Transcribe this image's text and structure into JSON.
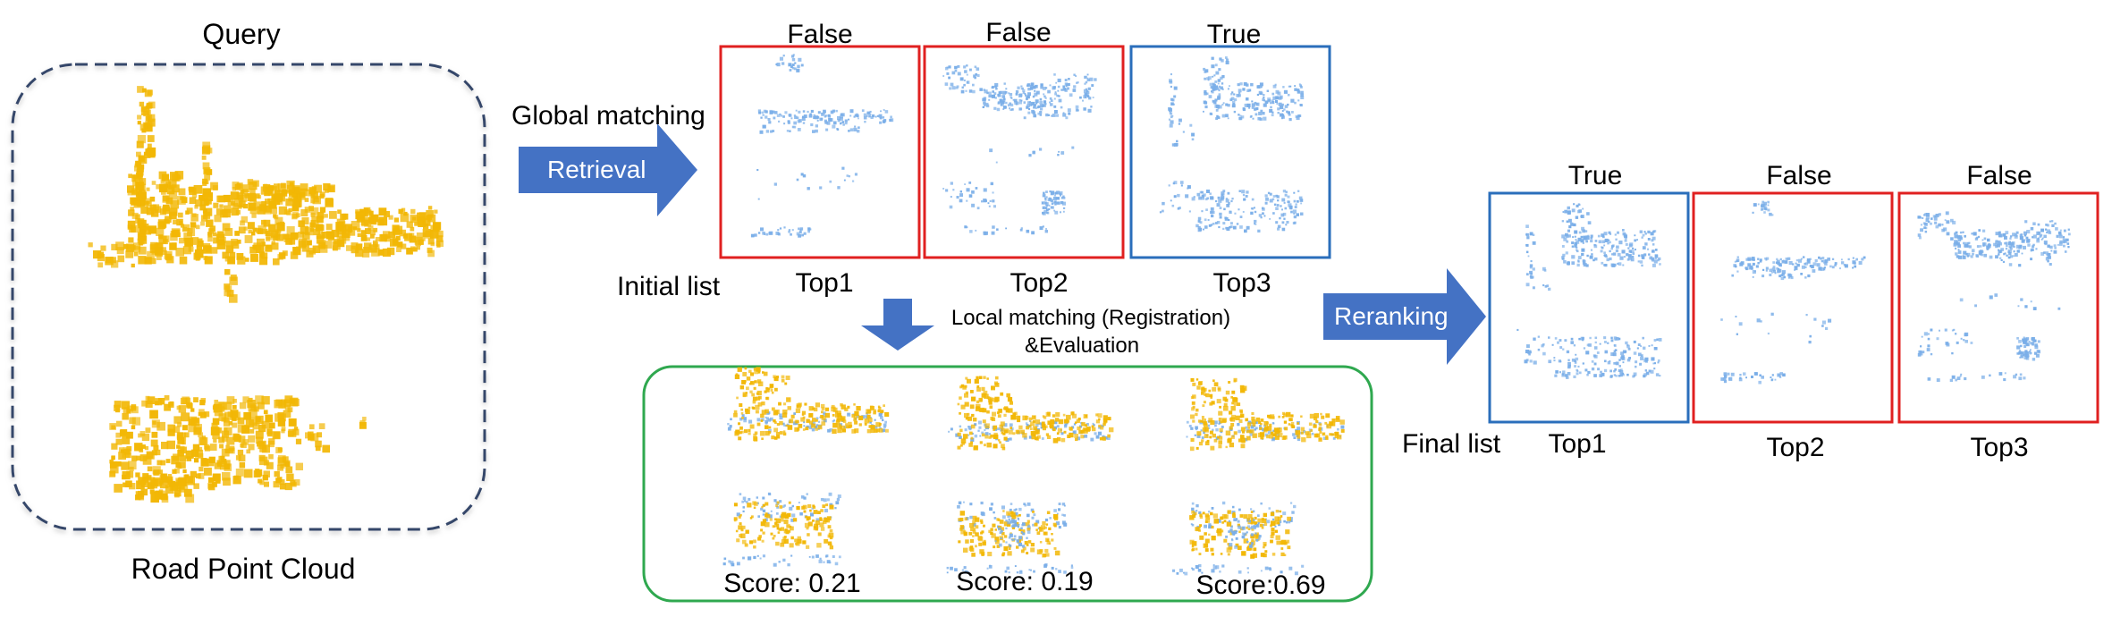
{
  "query": {
    "title": "Query",
    "caption": "Road Point Cloud"
  },
  "global_matching": {
    "label": "Global matching",
    "arrow_text": "Retrieval"
  },
  "initial_list": {
    "label": "Initial list",
    "items": [
      {
        "status": "False",
        "rank": "Top1",
        "color": "#e02020"
      },
      {
        "status": "False",
        "rank": "Top2",
        "color": "#e02020"
      },
      {
        "status": "True",
        "rank": "Top3",
        "color": "#2a6ebb"
      }
    ]
  },
  "local_matching": {
    "line1": "Local matching (Registration)",
    "line2": "&Evaluation",
    "scores": [
      "Score: 0.21",
      "Score: 0.19",
      "Score:0.69"
    ],
    "box_color": "#2fa84f"
  },
  "reranking": {
    "arrow_text": "Reranking"
  },
  "final_list": {
    "label": "Final list",
    "items": [
      {
        "status": "True",
        "rank": "Top1",
        "color": "#2a6ebb"
      },
      {
        "status": "False",
        "rank": "Top2",
        "color": "#e02020"
      },
      {
        "status": "False",
        "rank": "Top3",
        "color": "#e02020"
      }
    ]
  },
  "colors": {
    "query_points": "#f2b705",
    "candidate_points": "#7aaee8",
    "arrow_fill": "#4472c4",
    "query_border": "#34476b"
  }
}
